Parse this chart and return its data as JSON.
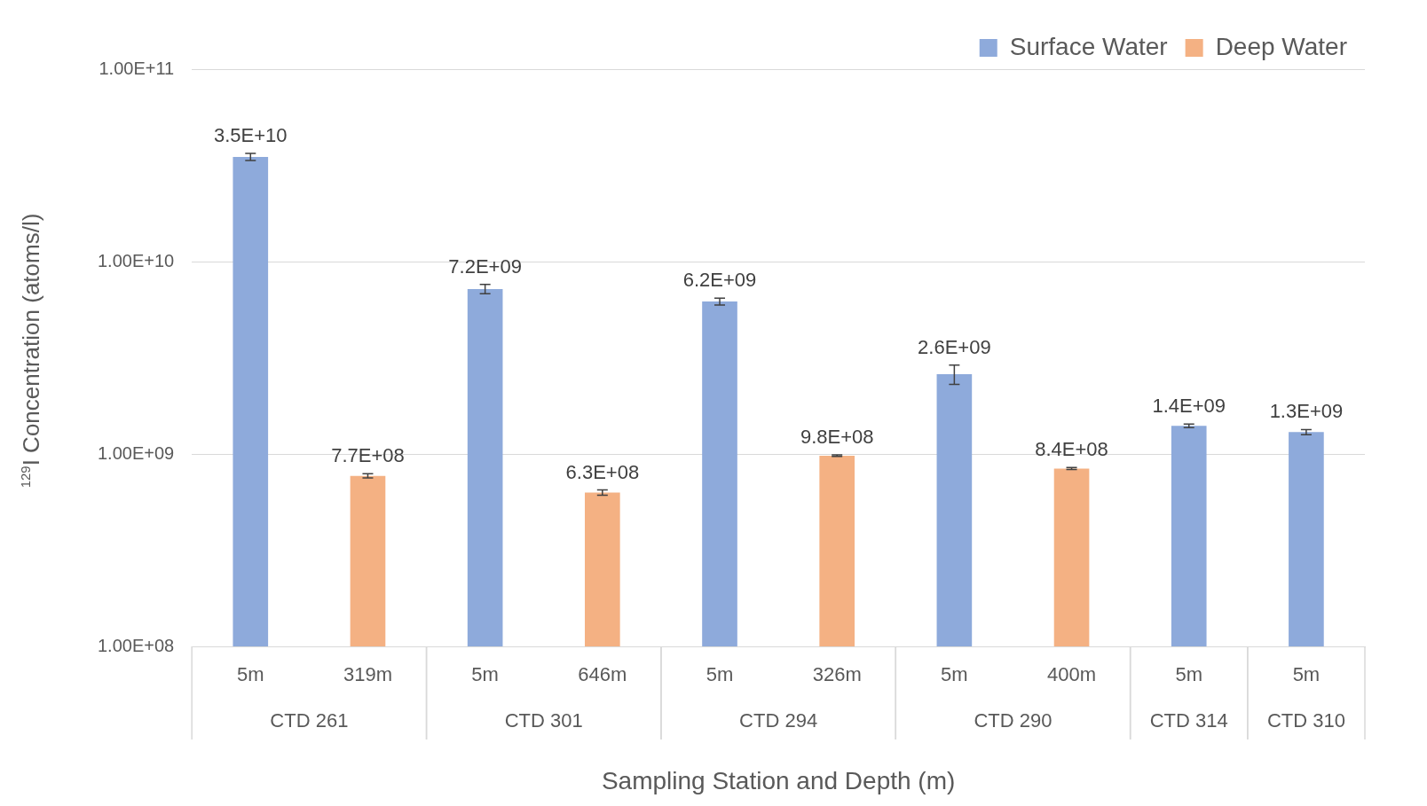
{
  "chart_data": {
    "type": "bar",
    "xlabel": "Sampling Station and Depth (m)",
    "ylabel": "$^{129}$I Concentration (atoms/l)",
    "categories": [
      "5m",
      "319m",
      "5m",
      "646m",
      "5m",
      "326m",
      "5m",
      "400m",
      "5m",
      "5m"
    ],
    "annotations": [
      "CTD 261",
      "CTD 301",
      "CTD 294",
      "CTD 290",
      "CTD 314",
      "CTD 310"
    ],
    "series": [
      {
        "name": "Surface Water",
        "color": "#8eaadb",
        "values": [
          35000000000,
          null,
          7200000000,
          null,
          6200000000,
          null,
          2600000000,
          null,
          1400000000,
          1300000000
        ],
        "errors": [
          1500000000,
          null,
          400000000,
          null,
          250000000,
          null,
          300000000,
          null,
          30000000,
          40000000
        ],
        "value_labels": [
          "3.5E+10",
          null,
          "7.2E+09",
          null,
          "6.2E+09",
          null,
          "2.6E+09",
          null,
          "1.4E+09",
          "1.3E+09"
        ]
      },
      {
        "name": "Deep Water",
        "color": "#f4b183",
        "values": [
          null,
          770000000,
          null,
          630000000,
          null,
          980000000,
          null,
          840000000,
          null,
          null
        ],
        "errors": [
          null,
          20000000,
          null,
          20000000,
          null,
          10000000,
          null,
          10000000,
          null,
          null
        ],
        "value_labels": [
          null,
          "7.7E+08",
          null,
          "6.3E+08",
          null,
          "9.8E+08",
          null,
          "8.4E+08",
          null,
          null
        ]
      }
    ],
    "log": true,
    "ylim": [
      100000000,
      100000000000
    ],
    "yticks": [
      {
        "value": 100000000,
        "label": "1.00E+08"
      },
      {
        "value": 1000000000,
        "label": "1.00E+09"
      },
      {
        "value": 10000000000,
        "label": "1.00E+10"
      },
      {
        "value": 100000000000,
        "label": "1.00E+11"
      }
    ],
    "grid": "y",
    "legend": "top right"
  }
}
